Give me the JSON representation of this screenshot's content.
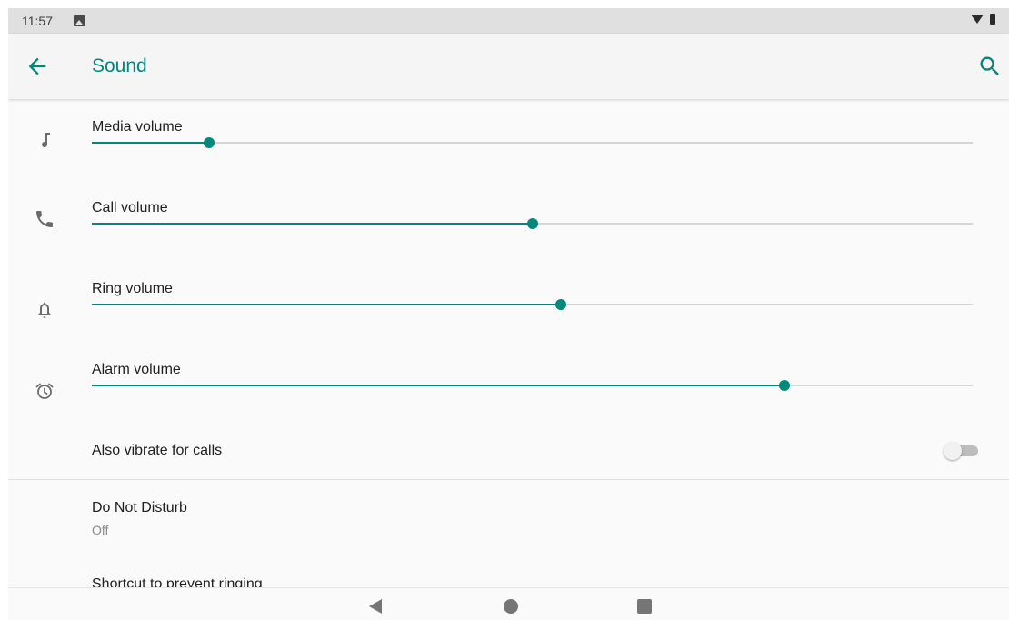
{
  "status_bar": {
    "time": "11:57",
    "notification_icon": "image-icon",
    "wifi_icon": "wifi-icon",
    "battery_icon": "battery-icon"
  },
  "app_bar": {
    "title": "Sound",
    "back_icon": "arrow-back-icon",
    "search_icon": "search-icon"
  },
  "volumes": [
    {
      "label": "Media volume",
      "icon": "music-note-icon",
      "level": 0.133
    },
    {
      "label": "Call volume",
      "icon": "phone-icon",
      "level": 0.5
    },
    {
      "label": "Ring volume",
      "icon": "bell-icon",
      "level": 0.533
    },
    {
      "label": "Alarm volume",
      "icon": "alarm-clock-icon",
      "level": 0.786
    }
  ],
  "vibrate": {
    "label": "Also vibrate for calls",
    "checked": false
  },
  "dnd": {
    "title": "Do Not Disturb",
    "summary": "Off"
  },
  "shortcut": {
    "title": "Shortcut to prevent ringing"
  },
  "colors": {
    "accent": "#00897b",
    "track_inactive": "#d6d6d6",
    "status_bar": "#e0e0e0",
    "background": "#fafafa"
  },
  "nav": {
    "back_icon": "nav-back-icon",
    "home_icon": "nav-home-icon",
    "recents_icon": "nav-recents-icon"
  }
}
